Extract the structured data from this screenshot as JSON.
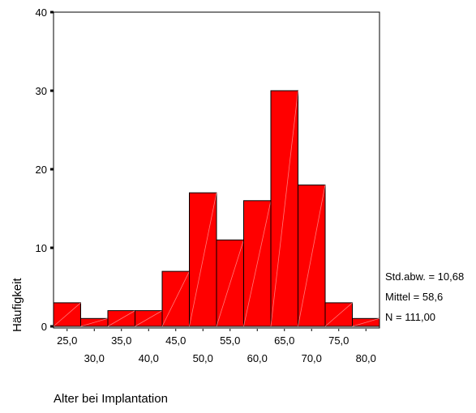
{
  "chart_data": {
    "type": "bar",
    "subtype": "histogram",
    "xlabel": "Alter bei Implantation",
    "ylabel": "Häufigkeit",
    "ylim": [
      0,
      40
    ],
    "yticks": [
      "0",
      "10",
      "20",
      "30",
      "40"
    ],
    "bin_width": 5,
    "bins": [
      {
        "center": 25,
        "count": 3
      },
      {
        "center": 30,
        "count": 1
      },
      {
        "center": 35,
        "count": 2
      },
      {
        "center": 40,
        "count": 2
      },
      {
        "center": 45,
        "count": 7
      },
      {
        "center": 50,
        "count": 17
      },
      {
        "center": 55,
        "count": 11
      },
      {
        "center": 60,
        "count": 16
      },
      {
        "center": 65,
        "count": 30
      },
      {
        "center": 70,
        "count": 18
      },
      {
        "center": 75,
        "count": 3
      },
      {
        "center": 80,
        "count": 1
      }
    ],
    "xtick_labels_upper": [
      "25,0",
      "35,0",
      "45,0",
      "55,0",
      "65,0",
      "75,0"
    ],
    "xtick_labels_lower": [
      "30,0",
      "40,0",
      "50,0",
      "60,0",
      "70,0",
      "80,0"
    ],
    "stats": {
      "std_dev": "Std.abw. = 10,68",
      "mean": "Mittel = 58,6",
      "n": "N = 111,00"
    },
    "bar_color": "#ff0000",
    "bar_stroke": "#000000",
    "grid": false,
    "legend": "none"
  }
}
